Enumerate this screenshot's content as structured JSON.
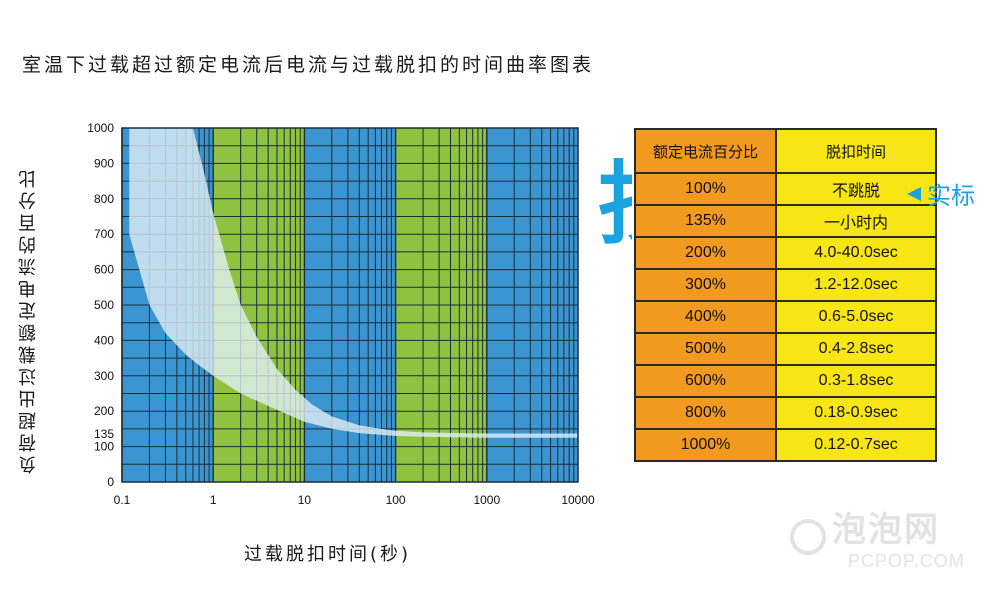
{
  "title": "室温下过载超过额定电流后电流与过载脱扣的时间曲率图表",
  "chart_data": {
    "type": "area",
    "xlabel": "过载脱扣时间(秒)",
    "ylabel": "负荷超出过载额定电流的百分比",
    "xscale": "log",
    "xlim": [
      0.1,
      10000
    ],
    "ylim": [
      0,
      1000
    ],
    "x_ticks": [
      "0.1",
      "1",
      "10",
      "100",
      "1000",
      "10000"
    ],
    "y_ticks": [
      "0",
      "100",
      "135",
      "200",
      "300",
      "400",
      "500",
      "600",
      "700",
      "800",
      "900",
      "1000"
    ],
    "y_tick_values": [
      0,
      100,
      135,
      200,
      300,
      400,
      500,
      600,
      700,
      800,
      900,
      1000
    ],
    "grid": true,
    "background_bands": [
      {
        "from": 0.1,
        "to": 1,
        "color": "#3b95d0"
      },
      {
        "from": 1,
        "to": 10,
        "color": "#8fc241"
      },
      {
        "from": 10,
        "to": 100,
        "color": "#3b95d0"
      },
      {
        "from": 100,
        "to": 1000,
        "color": "#8fc241"
      },
      {
        "from": 1000,
        "to": 10000,
        "color": "#3b95d0"
      }
    ],
    "band_curve": {
      "lower": [
        [
          0.12,
          700
        ],
        [
          0.2,
          500
        ],
        [
          0.3,
          420
        ],
        [
          0.5,
          360
        ],
        [
          0.7,
          330
        ],
        [
          1,
          300
        ],
        [
          2,
          250
        ],
        [
          4,
          215
        ],
        [
          6,
          195
        ],
        [
          10,
          170
        ],
        [
          20,
          150
        ],
        [
          40,
          138
        ],
        [
          70,
          133
        ],
        [
          100,
          130
        ],
        [
          200,
          128
        ],
        [
          500,
          126
        ],
        [
          1000,
          125
        ],
        [
          10000,
          125
        ]
      ],
      "upper": [
        [
          0.6,
          1000
        ],
        [
          0.8,
          870
        ],
        [
          1,
          760
        ],
        [
          1.5,
          600
        ],
        [
          2,
          500
        ],
        [
          3,
          410
        ],
        [
          5,
          320
        ],
        [
          8,
          260
        ],
        [
          12,
          220
        ],
        [
          20,
          185
        ],
        [
          40,
          160
        ],
        [
          70,
          150
        ],
        [
          100,
          145
        ],
        [
          200,
          140
        ],
        [
          500,
          138
        ],
        [
          1000,
          137
        ],
        [
          10000,
          137
        ]
      ]
    }
  },
  "table": {
    "headers": [
      "额定电流百分比",
      "脱扣时间"
    ],
    "rows": [
      [
        "100%",
        "不跳脱"
      ],
      [
        "135%",
        "一小时内"
      ],
      [
        "200%",
        "4.0-40.0sec"
      ],
      [
        "300%",
        "1.2-12.0sec"
      ],
      [
        "400%",
        "0.6-5.0sec"
      ],
      [
        "500%",
        "0.4-2.8sec"
      ],
      [
        "600%",
        "0.3-1.8sec"
      ],
      [
        "800%",
        "0.18-0.9sec"
      ],
      [
        "1000%",
        "0.12-0.7sec"
      ]
    ]
  },
  "annotation": {
    "label": "实标"
  },
  "decor": {
    "partial_char": "抄"
  },
  "watermark": {
    "main": "泡泡网",
    "sub": "PCPOP.COM"
  }
}
